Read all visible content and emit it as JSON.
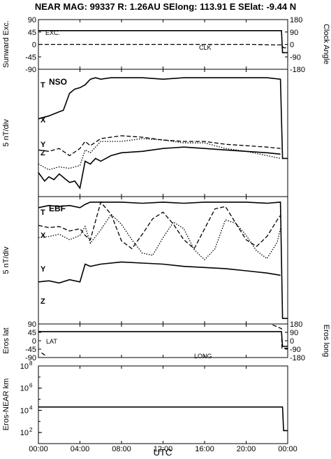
{
  "header": {
    "title": "NEAR MAG: 99337  R: 1.26AU  SElong:  113.91 E  SElat:   -9.44 N"
  },
  "colors": {
    "ink": "#000000",
    "background": "#ffffff"
  },
  "xaxis": {
    "label": "UTC",
    "unit": "hours",
    "range": [
      0,
      24
    ],
    "tick_hours": [
      0,
      4,
      8,
      12,
      16,
      20,
      24
    ],
    "tick_labels": [
      "00:00",
      "04:00",
      "08:00",
      "12:00",
      "16:00",
      "20:00",
      "00:00"
    ]
  },
  "chart_data": [
    {
      "type": "line",
      "panel": "sunward-exc",
      "ylabel_left": "Sunward Exc.",
      "ylabel_right": "Clock Angle",
      "ylim_left": [
        -90,
        90
      ],
      "yticks_left": [
        "90",
        "45",
        "0",
        "-45",
        "-90"
      ],
      "ylim_right": [
        -180,
        180
      ],
      "yticks_right": [
        "180",
        "90",
        "0",
        "-90",
        "-180"
      ],
      "series": [
        {
          "name": "EXC.",
          "style": "solid",
          "x": [
            0.0,
            23.4,
            23.5,
            24.0
          ],
          "y": [
            50,
            50,
            -30,
            -30
          ]
        },
        {
          "name": "CLK",
          "style": "dashed",
          "x": [
            0.0,
            20.5,
            22.5,
            23.4,
            23.6,
            24.0
          ],
          "y": [
            0,
            0,
            -3,
            -3,
            -25,
            -25
          ]
        }
      ]
    },
    {
      "type": "line",
      "panel": "nso",
      "panel_label": "NSO",
      "ylabel": "5 nT/div",
      "series": [
        {
          "name": "T",
          "style": "solid",
          "x": [
            0.0,
            1.0,
            2.0,
            2.4,
            3.0,
            3.5,
            4.0,
            4.5,
            5.0,
            5.5,
            6.0,
            7.0,
            8.0,
            10.0,
            12.0,
            14.0,
            16.0,
            18.0,
            20.0,
            22.0,
            23.3,
            23.5,
            24.0
          ],
          "y": [
            1.0,
            1.2,
            1.5,
            1.6,
            2.8,
            3.1,
            3.2,
            3.4,
            3.8,
            3.9,
            3.8,
            3.9,
            3.9,
            3.9,
            3.8,
            3.9,
            3.9,
            3.9,
            3.9,
            3.9,
            3.8,
            -1.8,
            -1.8
          ]
        },
        {
          "name": "X",
          "style": "dashed",
          "x": [
            0.0,
            1.0,
            2.0,
            3.0,
            4.0,
            4.5,
            5.0,
            6.0,
            8.0,
            10.0,
            12.0,
            14.0,
            16.0,
            18.0,
            20.0,
            22.0,
            23.3
          ],
          "y": [
            -1.2,
            -1.3,
            -1.1,
            -1.6,
            -1.1,
            -0.6,
            -0.9,
            -0.4,
            -0.2,
            -0.3,
            -0.5,
            -0.6,
            -0.6,
            -0.8,
            -0.9,
            -1.0,
            -1.1
          ]
        },
        {
          "name": "Y",
          "style": "dotted",
          "x": [
            0.0,
            1.0,
            2.0,
            3.0,
            4.0,
            4.5,
            5.0,
            6.0,
            8.0,
            10.0,
            12.0,
            14.0,
            16.0,
            18.0,
            20.0,
            22.0,
            23.3
          ],
          "y": [
            -2.2,
            -2.6,
            -2.4,
            -2.5,
            -2.3,
            -1.2,
            -1.4,
            -0.6,
            -0.6,
            -0.4,
            -0.5,
            -0.7,
            -0.7,
            -1.1,
            -1.3,
            -1.6,
            -1.8
          ]
        },
        {
          "name": "Z",
          "style": "solid",
          "x": [
            0.0,
            0.6,
            1.0,
            1.5,
            2.0,
            2.5,
            3.0,
            3.5,
            4.0,
            4.5,
            5.0,
            5.5,
            6.0,
            7.0,
            8.0,
            10.0,
            12.0,
            14.0,
            16.0,
            18.0,
            20.0,
            22.0,
            23.3
          ],
          "y": [
            -2.8,
            -3.4,
            -3.1,
            -3.3,
            -2.9,
            -3.2,
            -3.5,
            -3.4,
            -3.9,
            -2.0,
            -2.2,
            -1.8,
            -2.0,
            -1.6,
            -1.4,
            -1.3,
            -1.1,
            -1.0,
            -1.1,
            -1.2,
            -1.3,
            -1.4,
            -1.5
          ]
        }
      ]
    },
    {
      "type": "line",
      "panel": "ebf",
      "panel_label": "EBF",
      "ylabel": "5 nT/div",
      "series": [
        {
          "name": "T",
          "style": "solid",
          "x": [
            0.0,
            1.0,
            2.0,
            3.0,
            4.0,
            4.5,
            5.0,
            6.0,
            8.0,
            10.0,
            12.0,
            14.0,
            16.0,
            18.0,
            20.0,
            22.0,
            23.3,
            23.5,
            24.0
          ],
          "y": [
            4.5,
            4.7,
            4.6,
            4.7,
            4.5,
            4.8,
            5.0,
            5.0,
            5.0,
            4.9,
            5.0,
            4.9,
            5.0,
            5.0,
            5.0,
            4.9,
            5.0,
            -5.5,
            -5.5
          ]
        },
        {
          "name": "X",
          "style": "dashed",
          "x": [
            0.0,
            1.0,
            2.0,
            3.0,
            4.0,
            4.5,
            5.0,
            6.0,
            7.0,
            8.0,
            9.0,
            10.0,
            11.0,
            12.0,
            13.0,
            14.0,
            15.0,
            16.0,
            17.0,
            18.0,
            19.0,
            20.0,
            21.0,
            22.0,
            23.0,
            23.3
          ],
          "y": [
            2.9,
            2.7,
            2.8,
            2.4,
            2.6,
            2.0,
            1.6,
            5.0,
            3.9,
            1.5,
            0.8,
            2.1,
            3.5,
            4.1,
            3.0,
            1.6,
            0.8,
            2.6,
            4.4,
            4.6,
            3.1,
            1.6,
            1.0,
            1.9,
            3.4,
            3.8
          ]
        },
        {
          "name": "Y",
          "style": "dotted",
          "x": [
            0.0,
            1.0,
            2.0,
            3.0,
            4.0,
            4.5,
            5.0,
            6.0,
            7.0,
            8.0,
            9.0,
            10.0,
            11.0,
            12.0,
            13.0,
            14.0,
            15.0,
            16.0,
            17.0,
            18.0,
            19.0,
            20.0,
            21.0,
            22.0,
            23.0,
            23.3
          ],
          "y": [
            1.8,
            1.9,
            2.1,
            1.6,
            2.0,
            2.8,
            1.3,
            2.5,
            3.9,
            3.0,
            1.6,
            0.4,
            0.2,
            1.8,
            3.2,
            2.6,
            0.7,
            -0.2,
            0.8,
            3.4,
            3.1,
            2.0,
            0.6,
            -0.1,
            1.4,
            2.6
          ]
        },
        {
          "name": "Z",
          "style": "solid",
          "x": [
            0.0,
            1.0,
            2.0,
            3.0,
            4.0,
            4.5,
            5.0,
            6.0,
            8.0,
            10.0,
            12.0,
            14.0,
            16.0,
            18.0,
            20.0,
            22.0,
            23.3
          ],
          "y": [
            -2.2,
            -2.1,
            -2.3,
            -2.0,
            -2.2,
            -0.6,
            -0.8,
            -0.6,
            -0.4,
            -0.5,
            -0.6,
            -0.8,
            -0.9,
            -1.0,
            -1.2,
            -1.4,
            -1.6
          ]
        }
      ]
    },
    {
      "type": "line",
      "panel": "eros-angles",
      "ylabel_left": "Eros lat",
      "ylabel_right": "Eros long",
      "ylim_left": [
        -90,
        90
      ],
      "yticks_left": [
        "90",
        "45",
        "0",
        "-45",
        "-90"
      ],
      "ylim_right": [
        -180,
        180
      ],
      "yticks_right": [
        "180",
        "90",
        "0",
        "-90",
        "-180"
      ],
      "series": [
        {
          "name": "LAT",
          "style": "solid",
          "x": [
            0.0,
            23.4,
            23.5,
            24.0
          ],
          "y": [
            49,
            49,
            -30,
            -30
          ]
        },
        {
          "name": "LONG",
          "style": "dashed",
          "x": [
            0.3,
            0.7,
            0.75,
            6.4,
            6.45,
            11.3,
            11.35,
            16.8,
            16.85,
            22.5,
            22.55,
            23.4,
            23.45,
            24.0
          ],
          "y": [
            -130,
            -160,
            160,
            -180,
            180,
            -160,
            160,
            -170,
            170,
            -170,
            170,
            130,
            -80,
            -80
          ]
        }
      ]
    },
    {
      "type": "line",
      "panel": "eros-near-distance",
      "ylabel": "Eros-NEAR km",
      "yscale": "log",
      "ylim": [
        10,
        100000000
      ],
      "yticks": [
        "10^8",
        "10^6",
        "10^4",
        "10^2"
      ],
      "series": [
        {
          "name": "",
          "style": "solid",
          "x": [
            0.0,
            23.5,
            23.6,
            24.0
          ],
          "y": [
            20000,
            20000,
            150,
            150
          ]
        }
      ]
    }
  ],
  "annotations": {
    "exc": "EXC.",
    "clk": "CLK",
    "t": "T",
    "nso": "NSO",
    "x": "X",
    "y": "Y",
    "z": "Z",
    "ebf": "EBF",
    "lat": "LAT",
    "long": "LONG"
  }
}
